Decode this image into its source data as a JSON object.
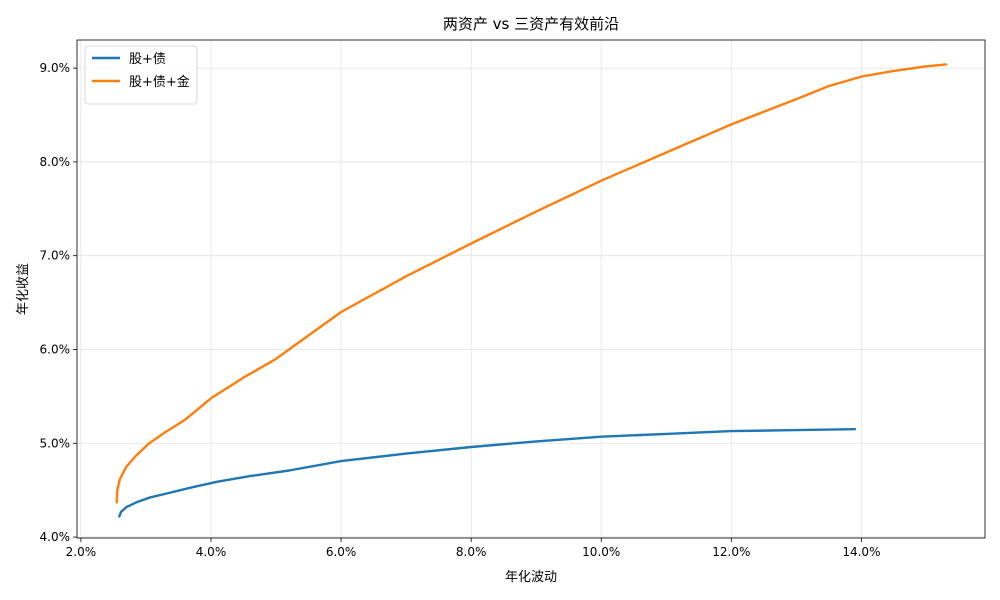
{
  "chart_data": {
    "type": "line",
    "title": "两资产 vs 三资产有效前沿",
    "xlabel": "年化波动",
    "ylabel": "年化收益",
    "xlim": [
      1.94,
      15.9
    ],
    "ylim": [
      3.99,
      9.3
    ],
    "x_ticks": [
      2,
      4,
      6,
      8,
      10,
      12,
      14
    ],
    "x_tick_labels": [
      "2.0%",
      "4.0%",
      "6.0%",
      "8.0%",
      "10.0%",
      "12.0%",
      "14.0%"
    ],
    "y_ticks": [
      4,
      5,
      6,
      7,
      8,
      9
    ],
    "y_tick_labels": [
      "4.0%",
      "5.0%",
      "6.0%",
      "7.0%",
      "8.0%",
      "9.0%"
    ],
    "grid": true,
    "legend_position": "top-left",
    "series": [
      {
        "name": "股+债",
        "color": "#1f77b4",
        "points": [
          [
            2.59,
            4.22
          ],
          [
            2.62,
            4.27
          ],
          [
            2.7,
            4.32
          ],
          [
            2.85,
            4.37
          ],
          [
            3.05,
            4.42
          ],
          [
            3.35,
            4.47
          ],
          [
            3.7,
            4.53
          ],
          [
            4.1,
            4.59
          ],
          [
            4.6,
            4.65
          ],
          [
            5.2,
            4.71
          ],
          [
            6.0,
            4.81
          ],
          [
            7.0,
            4.89
          ],
          [
            8.0,
            4.96
          ],
          [
            9.0,
            5.02
          ],
          [
            10.0,
            5.07
          ],
          [
            11.0,
            5.1
          ],
          [
            12.0,
            5.13
          ],
          [
            13.0,
            5.14
          ],
          [
            13.9,
            5.15
          ]
        ]
      },
      {
        "name": "股+债+金",
        "color": "#ff7f0e",
        "points": [
          [
            2.55,
            4.37
          ],
          [
            2.56,
            4.5
          ],
          [
            2.6,
            4.62
          ],
          [
            2.7,
            4.75
          ],
          [
            2.85,
            4.87
          ],
          [
            3.05,
            5.0
          ],
          [
            3.3,
            5.12
          ],
          [
            3.6,
            5.25
          ],
          [
            4.0,
            5.48
          ],
          [
            4.5,
            5.7
          ],
          [
            5.0,
            5.9
          ],
          [
            6.0,
            6.4
          ],
          [
            7.0,
            6.78
          ],
          [
            8.0,
            7.13
          ],
          [
            9.0,
            7.47
          ],
          [
            10.0,
            7.8
          ],
          [
            11.0,
            8.1
          ],
          [
            12.0,
            8.4
          ],
          [
            13.0,
            8.67
          ],
          [
            13.5,
            8.81
          ],
          [
            14.0,
            8.91
          ],
          [
            14.5,
            8.97
          ],
          [
            15.0,
            9.02
          ],
          [
            15.3,
            9.04
          ]
        ]
      }
    ]
  }
}
